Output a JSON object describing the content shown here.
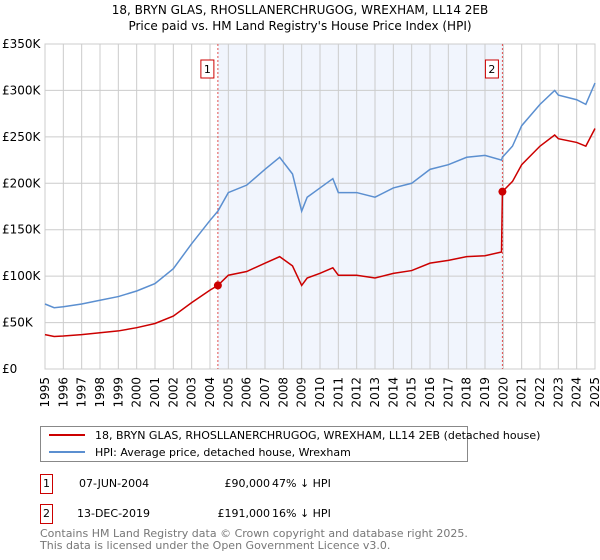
{
  "chart_data": {
    "type": "line",
    "title": "18, BRYN GLAS, RHOSLLANERCHRUGOG, WREXHAM, LL14 2EB",
    "subtitle": "Price paid vs. HM Land Registry's House Price Index (HPI)",
    "xlim": [
      1995,
      2025
    ],
    "ylim": [
      0,
      350000
    ],
    "y_ticks": [
      0,
      50000,
      100000,
      150000,
      200000,
      250000,
      300000,
      350000
    ],
    "y_tick_labels": [
      "£0",
      "£50K",
      "£100K",
      "£150K",
      "£200K",
      "£250K",
      "£300K",
      "£350K"
    ],
    "x_tick_labels": [
      "1995",
      "1996",
      "1997",
      "1998",
      "1999",
      "2000",
      "2001",
      "2002",
      "2003",
      "2004",
      "2005",
      "2006",
      "2007",
      "2008",
      "2009",
      "2010",
      "2011",
      "2012",
      "2013",
      "2014",
      "2015",
      "2016",
      "2017",
      "2018",
      "2019",
      "2020",
      "2021",
      "2022",
      "2023",
      "2024",
      "2025"
    ],
    "grid": true,
    "x": [
      1995,
      1995.5,
      1996,
      1997,
      1998,
      1999,
      2000,
      2001,
      2002,
      2003,
      2004,
      2004.43,
      2005,
      2006,
      2007,
      2007.8,
      2008.5,
      2009,
      2009.3,
      2010,
      2010.7,
      2011,
      2012,
      2013,
      2014,
      2015,
      2016,
      2017,
      2018,
      2019,
      2019.9,
      2019.95,
      2020.5,
      2021,
      2022,
      2022.8,
      2023,
      2024,
      2024.5,
      2025
    ],
    "series": [
      {
        "name": "18, BRYN GLAS, RHOSLLANERCHRUGOG, WREXHAM, LL14 2EB (detached house)",
        "color": "#cc0000",
        "values": [
          37,
          35,
          35.5,
          37,
          39,
          41,
          44.5,
          49,
          57,
          71.5,
          85,
          90,
          101,
          105,
          114,
          121,
          111,
          90,
          98,
          103,
          109,
          101,
          101,
          98,
          103,
          106,
          114,
          117,
          121,
          122,
          126,
          191,
          202,
          220,
          240,
          252,
          248,
          244,
          240,
          259
        ]
      },
      {
        "name": "HPI: Average price, detached house, Wrexham",
        "color": "#5b8fd0",
        "values": [
          70,
          66,
          67,
          70,
          74,
          78,
          84,
          92,
          108,
          135,
          160,
          170,
          190,
          198,
          215,
          228,
          210,
          170,
          185,
          195,
          205,
          190,
          190,
          185,
          195,
          200,
          215,
          220,
          228,
          230,
          225,
          228,
          240,
          262,
          285,
          300,
          295,
          290,
          285,
          308
        ]
      }
    ],
    "value_unit": "thousands GBP",
    "shaded_range": [
      2004.43,
      2019.95
    ],
    "sales": [
      {
        "id": "1",
        "x": 2004.43,
        "price": 90,
        "date": "07-JUN-2004",
        "price_label": "£90,000",
        "hpi_label": "47% ↓ HPI"
      },
      {
        "id": "2",
        "x": 2019.95,
        "price": 191,
        "date": "13-DEC-2019",
        "price_label": "£191,000",
        "hpi_label": "16% ↓ HPI"
      }
    ]
  },
  "footer": {
    "line1": "Contains HM Land Registry data © Crown copyright and database right 2025.",
    "line2": "This data is licensed under the Open Government Licence v3.0."
  }
}
